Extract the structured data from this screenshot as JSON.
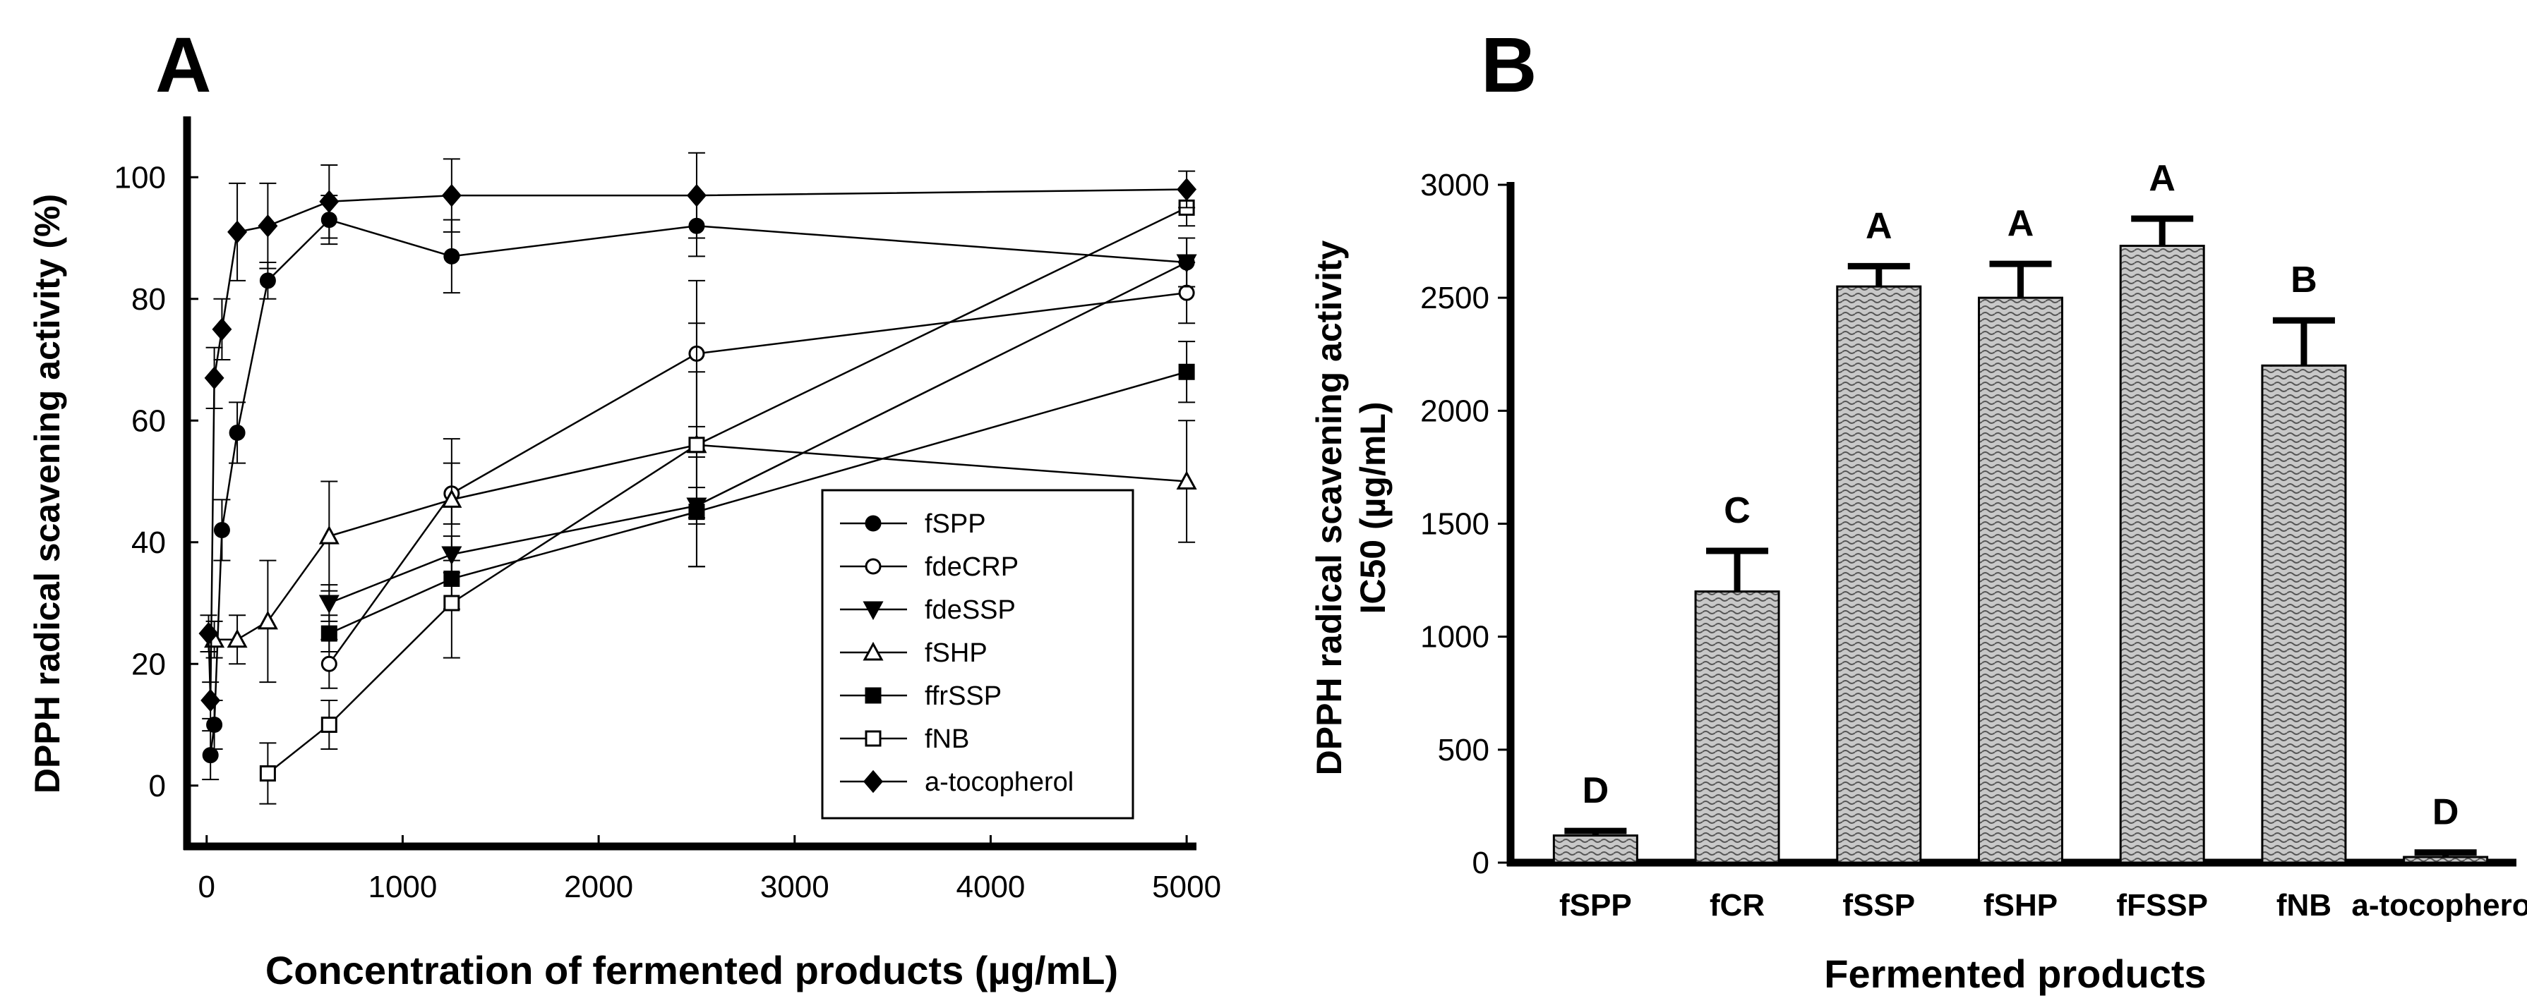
{
  "chart_data": [
    {
      "panel": "A",
      "type": "line",
      "xlabel": "Concentration of fermented products (µg/mL)",
      "ylabel": "DPPH radical scavening activity (%)",
      "xlim": [
        -100,
        5050
      ],
      "ylim": [
        -10,
        110
      ],
      "xticks": [
        0,
        1000,
        2000,
        3000,
        4000,
        5000
      ],
      "yticks": [
        0,
        20,
        40,
        60,
        80,
        100
      ],
      "legend_position": "lower-right",
      "series": [
        {
          "name": "fSPP",
          "marker": "circle-filled",
          "x": [
            19.5,
            39,
            78,
            156,
            312,
            625,
            1250,
            2500,
            5000
          ],
          "y": [
            5,
            10,
            42,
            58,
            83,
            93,
            87,
            92,
            86
          ],
          "err": [
            4,
            4,
            5,
            5,
            3,
            4,
            6,
            5,
            4
          ]
        },
        {
          "name": "fdeCRP",
          "marker": "circle-open",
          "x": [
            625,
            1250,
            2500,
            5000
          ],
          "y": [
            20,
            48,
            71,
            81
          ],
          "err": [
            4,
            5,
            12,
            5
          ]
        },
        {
          "name": "fdeSSP",
          "marker": "triangle-down-filled",
          "x": [
            625,
            1250,
            2500,
            5000
          ],
          "y": [
            30,
            38,
            46,
            86
          ],
          "err": [
            3,
            3,
            3,
            4
          ]
        },
        {
          "name": "fSHP",
          "marker": "triangle-up-open",
          "x": [
            39,
            156,
            312,
            625,
            1250,
            2500,
            5000
          ],
          "y": [
            24,
            24,
            27,
            41,
            47,
            56,
            50
          ],
          "err": [
            3,
            4,
            10,
            9,
            10,
            12,
            10
          ]
        },
        {
          "name": "ffrSSP",
          "marker": "square-filled",
          "x": [
            625,
            1250,
            2500,
            5000
          ],
          "y": [
            25,
            34,
            45,
            68
          ],
          "err": [
            3,
            5,
            9,
            5
          ]
        },
        {
          "name": "fNB",
          "marker": "square-open",
          "x": [
            312,
            625,
            1250,
            2500,
            5000
          ],
          "y": [
            2,
            10,
            30,
            56,
            95
          ],
          "err": [
            5,
            4,
            9,
            20,
            3
          ]
        },
        {
          "name": "a-tocopherol",
          "marker": "diamond-filled",
          "x": [
            9.8,
            19.5,
            39,
            78,
            156,
            312,
            625,
            1250,
            2500,
            5000
          ],
          "y": [
            25,
            14,
            67,
            75,
            91,
            92,
            96,
            97,
            97,
            98
          ],
          "err": [
            3,
            3,
            5,
            5,
            8,
            7,
            6,
            6,
            7,
            3
          ]
        }
      ]
    },
    {
      "panel": "B",
      "type": "bar",
      "xlabel": "Fermented products",
      "ylabel_line1": "DPPH radical scavening activity",
      "ylabel_line2": "IC50 (µg/mL)",
      "ylim": [
        0,
        3000
      ],
      "yticks": [
        0,
        500,
        1000,
        1500,
        2000,
        2500,
        3000
      ],
      "categories": [
        "fSPP",
        "fCR",
        "fSSP",
        "fSHP",
        "fFSSP",
        "fNB",
        "a-tocopherol"
      ],
      "values": [
        120,
        1200,
        2550,
        2500,
        2730,
        2200,
        25
      ],
      "errors": [
        20,
        180,
        90,
        150,
        120,
        200,
        20
      ],
      "significance": [
        "D",
        "C",
        "A",
        "A",
        "A",
        "B",
        "D"
      ]
    }
  ]
}
